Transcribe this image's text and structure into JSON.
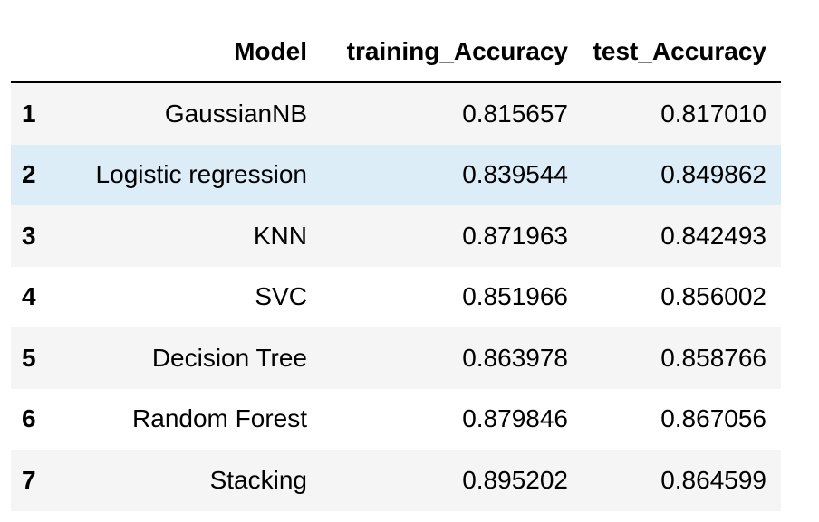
{
  "table": {
    "columns": [
      "",
      "Model",
      "training_Accuracy",
      "test_Accuracy"
    ],
    "rows": [
      {
        "index": "1",
        "model": "GaussianNB",
        "training_accuracy": "0.815657",
        "test_accuracy": "0.817010"
      },
      {
        "index": "2",
        "model": "Logistic regression",
        "training_accuracy": "0.839544",
        "test_accuracy": "0.849862"
      },
      {
        "index": "3",
        "model": "KNN",
        "training_accuracy": "0.871963",
        "test_accuracy": "0.842493"
      },
      {
        "index": "4",
        "model": "SVC",
        "training_accuracy": "0.851966",
        "test_accuracy": "0.856002"
      },
      {
        "index": "5",
        "model": "Decision Tree",
        "training_accuracy": "0.863978",
        "test_accuracy": "0.858766"
      },
      {
        "index": "6",
        "model": "Random Forest",
        "training_accuracy": "0.879846",
        "test_accuracy": "0.867056"
      },
      {
        "index": "7",
        "model": "Stacking",
        "training_accuracy": "0.895202",
        "test_accuracy": "0.864599"
      }
    ]
  },
  "colors": {
    "header_rule": "#000000",
    "striped_row": "#f5f5f5",
    "highlighted_row": "#dcedf8",
    "plain_row": "#ffffff"
  }
}
